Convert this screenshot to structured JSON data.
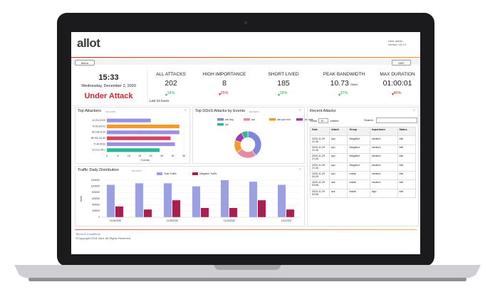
{
  "header": {
    "logo": "allot",
    "user": "User: admin",
    "version": "Version: 16.1.0"
  },
  "menu": {
    "menu_button": "Menu",
    "timezone": "GMT"
  },
  "status": {
    "time": "15:33",
    "date": "Wednesday, December 2, 2020",
    "state": "Under Attack",
    "period": "Last 24 hours"
  },
  "kpis": [
    {
      "label": "ALL ATTACKS",
      "value": "202",
      "change": "14%",
      "trend": "up"
    },
    {
      "label": "HIGH IMPORTANCE",
      "value": "8",
      "change": "25%",
      "trend": "down"
    },
    {
      "label": "SHORT LIVED",
      "value": "185",
      "change": "18%",
      "trend": "up"
    },
    {
      "label": "PEAK BANDWIDTH",
      "value": "10.73",
      "unit": "Gbit/s",
      "change": "37%",
      "trend": "up"
    },
    {
      "label": "MAX DURATION",
      "value": "01:00:01",
      "change": "40%",
      "trend": "down"
    }
  ],
  "top_attackers": {
    "title": "Top Attackers",
    "subtitle": "last week",
    "chart_data": {
      "type": "hbar",
      "categories": [
        "10.201.22.00",
        "70.45.200.01",
        "80.198.21.00",
        "89.191.211.83",
        "71.46.95.52",
        "10.121.109.1"
      ],
      "values": [
        20,
        33,
        33,
        29,
        31,
        24
      ],
      "colors": [
        "#9b8fe0",
        "#f39a2b",
        "#9b8fe0",
        "#d3435e",
        "#9b8fe0",
        "#2bb89a"
      ],
      "xlim": [
        0,
        35
      ],
      "xticks": [
        0,
        5,
        10,
        15,
        20,
        25,
        30,
        35
      ],
      "xlabel": "Events",
      "grid": true
    }
  },
  "top_ddos": {
    "title": "Top DDoS Attacks by Events",
    "subtitle": "last week",
    "chart_data": {
      "type": "donut",
      "categories": [
        "ack-flag",
        "syn",
        "ack-syn-trust",
        "ack-data",
        "ptd"
      ],
      "values": [
        40,
        25,
        15,
        12,
        8
      ],
      "colors": [
        "#7f86dd",
        "#e58aa0",
        "#f39a2b",
        "#a23aa8",
        "#2bb89a"
      ]
    }
  },
  "traffic": {
    "title": "Traffic Daily Distribution",
    "subtitle": "last week",
    "chart_data": {
      "type": "grouped_bar",
      "categories": [
        "11/26/2020",
        null,
        "11/28/2020",
        null,
        "11/30/2020",
        null,
        "12/2/2020"
      ],
      "series": [
        {
          "name": "Total Traffic",
          "color": "#9aa0e0",
          "values": [
            1050000,
            1100000,
            1100000,
            1000000,
            1200000,
            1150000,
            1050000
          ]
        },
        {
          "name": "Mitigated Traffic",
          "color": "#a8204e",
          "values": [
            350000,
            250000,
            550000,
            300000,
            300000,
            550000,
            250000
          ]
        }
      ],
      "ylim": [
        0,
        1200000
      ],
      "yticks": [
        0,
        200000,
        400000,
        600000,
        800000,
        1000000,
        1200000
      ],
      "ylabel": "Kbits",
      "grid": true
    }
  },
  "recent": {
    "title": "Recent Attacks",
    "show": "Show",
    "entries_value": "10",
    "entries": "entries",
    "search": "Search:",
    "table": {
      "columns": [
        "Date",
        "Attack",
        "Group",
        "Importance",
        "Status"
      ],
      "rows": [
        [
          "2020-11-29 21:45",
          "syn",
          "Megaline",
          "medium",
          "Idle"
        ],
        [
          "2020-11-29 21:45",
          "syn",
          "Megaline",
          "medium",
          "Idle"
        ],
        [
          "2020-11-29 21:45",
          "syn",
          "Megaline",
          "medium",
          "Idle"
        ],
        [
          "2020-11-28 21:45",
          "syn",
          "Megaline",
          "medium",
          "Idle"
        ],
        [
          "2020-11-29 02:29",
          "syn",
          "Inside",
          "medium",
          "Idle"
        ],
        [
          "2020-11-29 03:56",
          "ack",
          "Inside",
          "medium",
          "Idle"
        ],
        [
          "2020-11-29 03:56",
          "ack",
          "Inside",
          "high",
          "Idle"
        ]
      ]
    }
  },
  "footer": {
    "terms": "Terms & Conditions",
    "copyright": "©Copyright 2018. Allot. All Rights Reserved."
  }
}
